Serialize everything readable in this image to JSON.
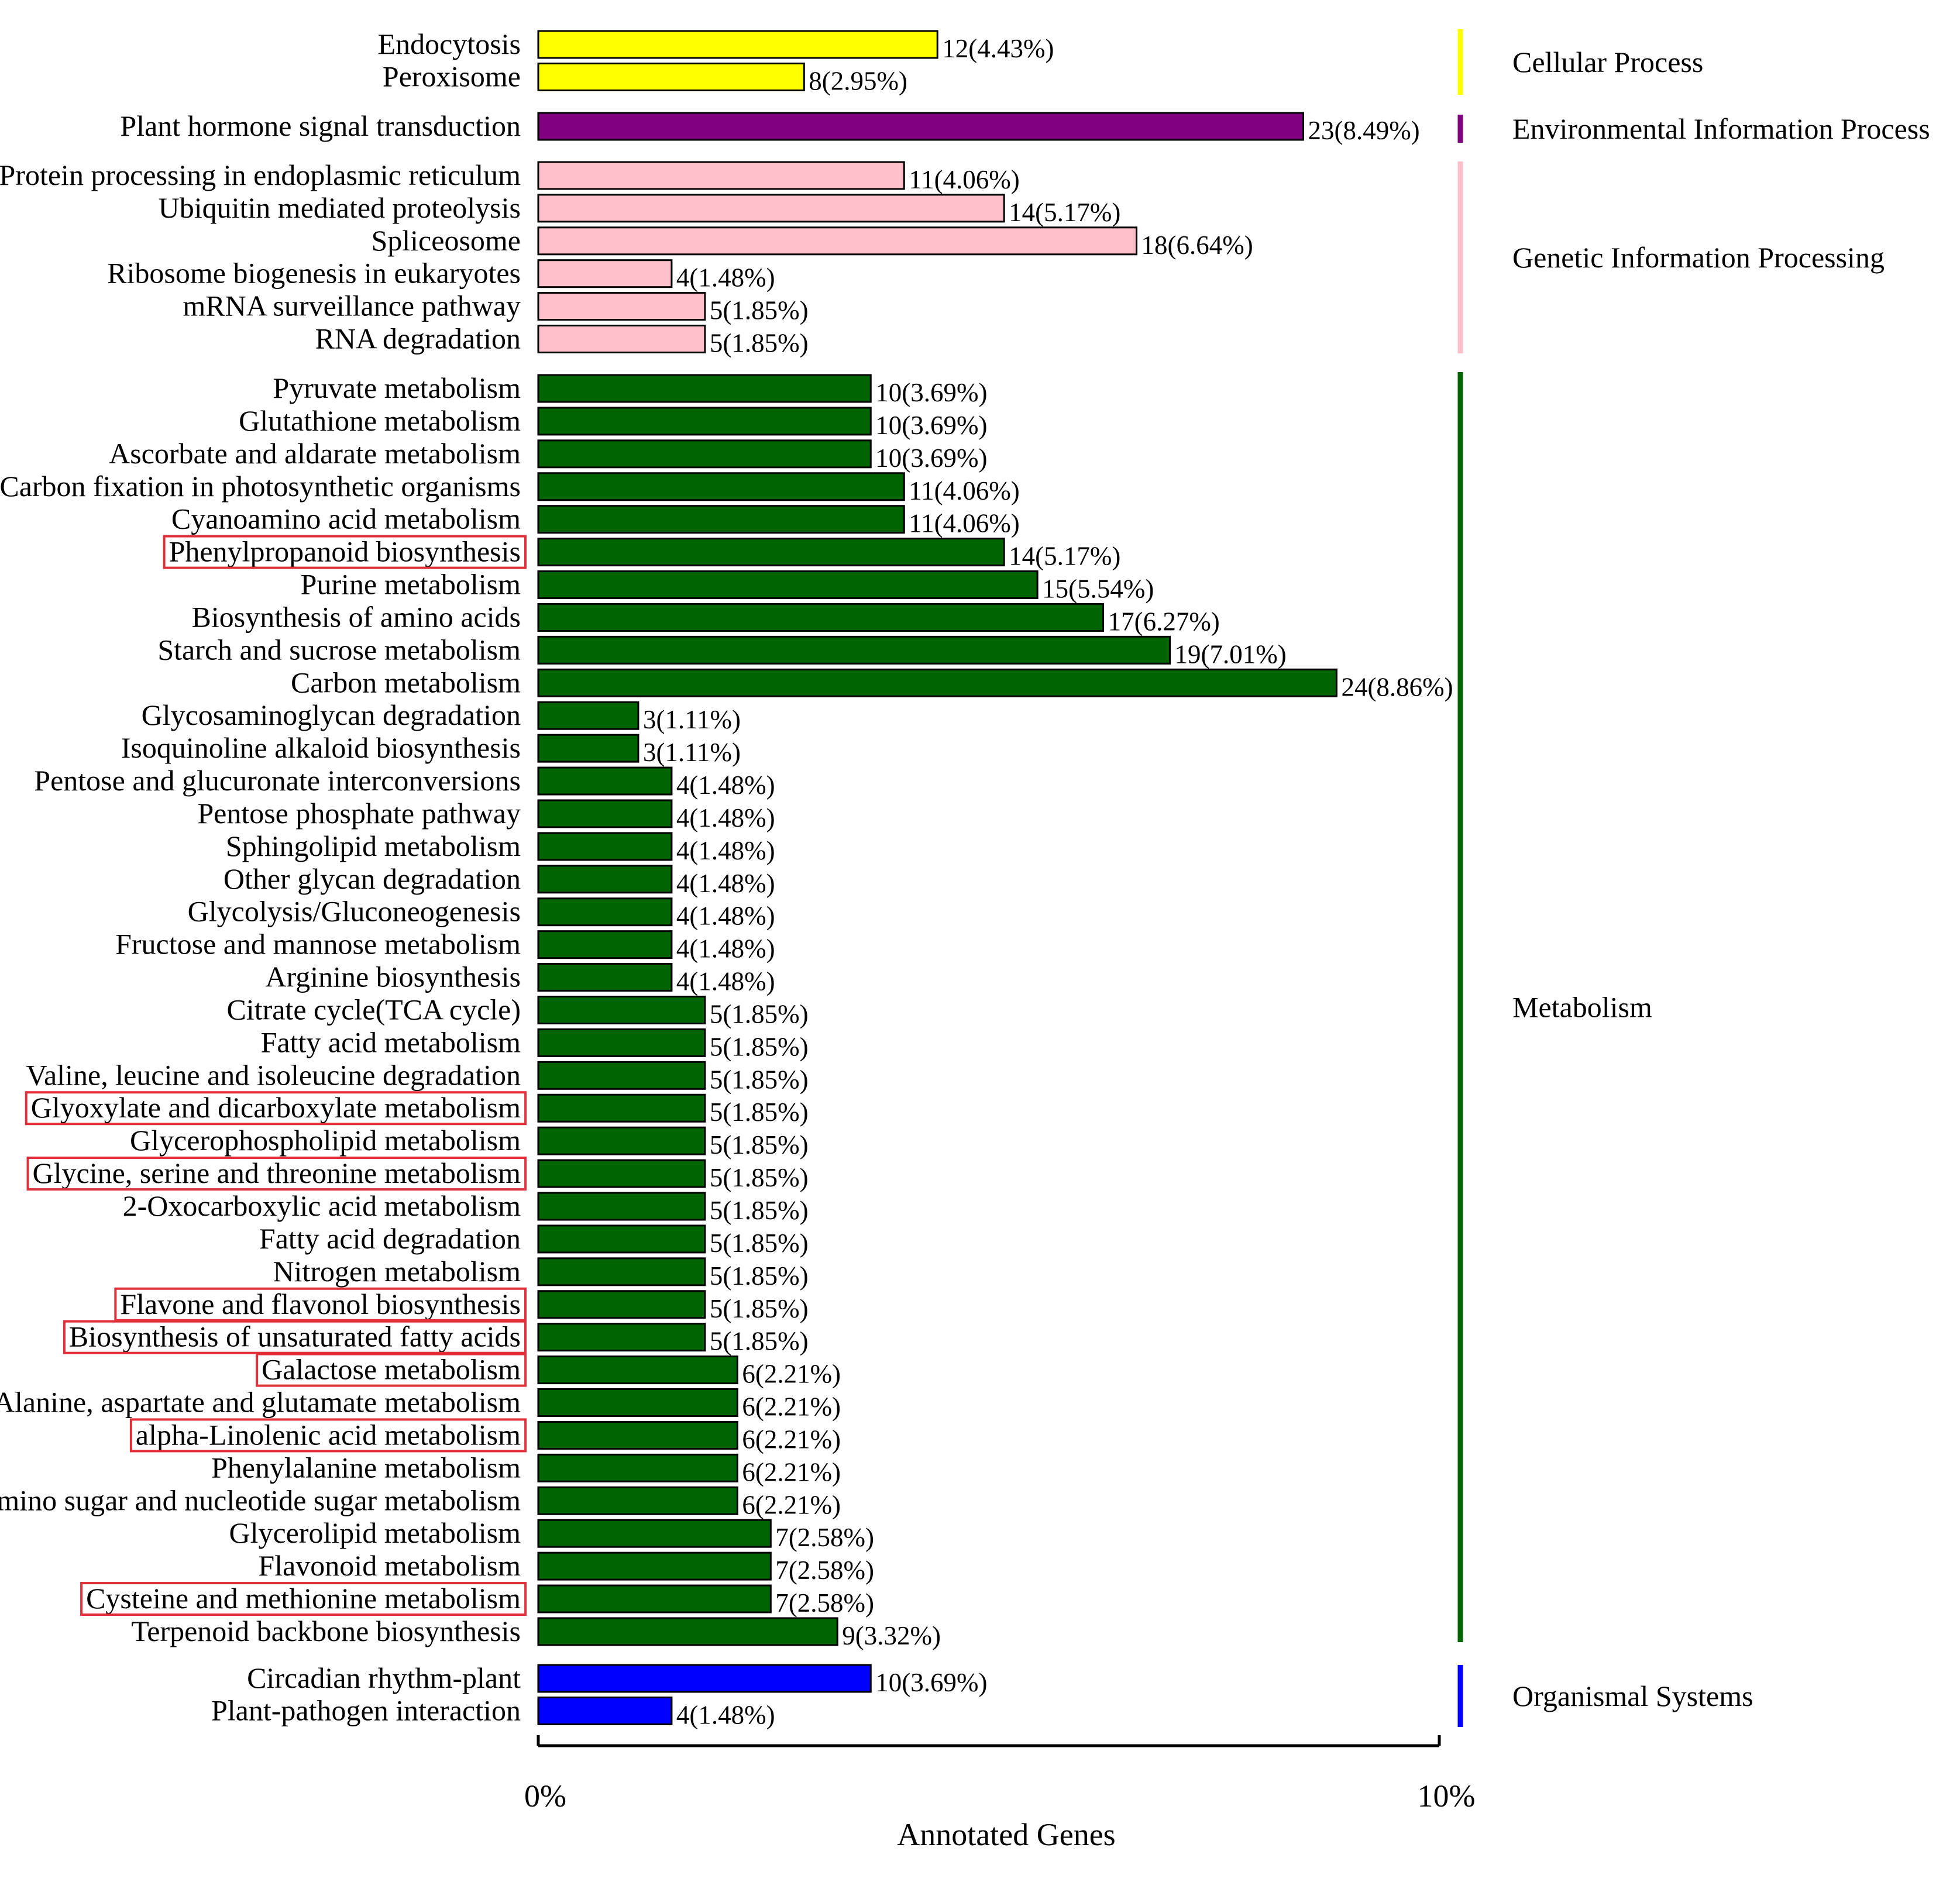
{
  "chart_data": {
    "type": "bar",
    "orientation": "horizontal",
    "xlabel": "Annotated Genes",
    "xlim": [
      0,
      10
    ],
    "x_ticks": [
      {
        "value": 0,
        "label": "0%"
      },
      {
        "value": 10,
        "label": "10%"
      }
    ],
    "groups": [
      {
        "name": "Cellular Process",
        "color": "#ffff00",
        "items": [
          {
            "label": "Endocytosis",
            "count": 12,
            "percent": 4.43,
            "value_label": "12(4.43%)",
            "highlighted": false
          },
          {
            "label": "Peroxisome",
            "count": 8,
            "percent": 2.95,
            "value_label": "8(2.95%)",
            "highlighted": false
          }
        ]
      },
      {
        "name": "Environmental Information Process",
        "color": "#800080",
        "items": [
          {
            "label": "Plant hormone signal transduction",
            "count": 23,
            "percent": 8.49,
            "value_label": "23(8.49%)",
            "highlighted": false
          }
        ]
      },
      {
        "name": "Genetic Information Processing",
        "color": "#ffc0cb",
        "items": [
          {
            "label": "Protein processing in endoplasmic reticulum",
            "count": 11,
            "percent": 4.06,
            "value_label": "11(4.06%)",
            "highlighted": false
          },
          {
            "label": "Ubiquitin mediated proteolysis",
            "count": 14,
            "percent": 5.17,
            "value_label": "14(5.17%)",
            "highlighted": false
          },
          {
            "label": "Spliceosome",
            "count": 18,
            "percent": 6.64,
            "value_label": "18(6.64%)",
            "highlighted": false
          },
          {
            "label": "Ribosome biogenesis in eukaryotes",
            "count": 4,
            "percent": 1.48,
            "value_label": "4(1.48%)",
            "highlighted": false
          },
          {
            "label": "mRNA surveillance pathway",
            "count": 5,
            "percent": 1.85,
            "value_label": "5(1.85%)",
            "highlighted": false
          },
          {
            "label": "RNA degradation",
            "count": 5,
            "percent": 1.85,
            "value_label": "5(1.85%)",
            "highlighted": false
          }
        ]
      },
      {
        "name": "Metabolism",
        "color": "#006400",
        "items": [
          {
            "label": "Pyruvate metabolism",
            "count": 10,
            "percent": 3.69,
            "value_label": "10(3.69%)",
            "highlighted": false
          },
          {
            "label": "Glutathione metabolism",
            "count": 10,
            "percent": 3.69,
            "value_label": "10(3.69%)",
            "highlighted": false
          },
          {
            "label": "Ascorbate and aldarate metabolism",
            "count": 10,
            "percent": 3.69,
            "value_label": "10(3.69%)",
            "highlighted": false
          },
          {
            "label": "Carbon fixation in photosynthetic organisms",
            "count": 11,
            "percent": 4.06,
            "value_label": "11(4.06%)",
            "highlighted": false
          },
          {
            "label": "Cyanoamino acid metabolism",
            "count": 11,
            "percent": 4.06,
            "value_label": "11(4.06%)",
            "highlighted": false
          },
          {
            "label": "Phenylpropanoid biosynthesis",
            "count": 14,
            "percent": 5.17,
            "value_label": "14(5.17%)",
            "highlighted": true
          },
          {
            "label": "Purine metabolism",
            "count": 15,
            "percent": 5.54,
            "value_label": "15(5.54%)",
            "highlighted": false
          },
          {
            "label": "Biosynthesis of amino acids",
            "count": 17,
            "percent": 6.27,
            "value_label": "17(6.27%)",
            "highlighted": false
          },
          {
            "label": "Starch and sucrose metabolism",
            "count": 19,
            "percent": 7.01,
            "value_label": "19(7.01%)",
            "highlighted": false
          },
          {
            "label": "Carbon metabolism",
            "count": 24,
            "percent": 8.86,
            "value_label": "24(8.86%)",
            "highlighted": false
          },
          {
            "label": "Glycosaminoglycan degradation",
            "count": 3,
            "percent": 1.11,
            "value_label": "3(1.11%)",
            "highlighted": false
          },
          {
            "label": "Isoquinoline alkaloid biosynthesis",
            "count": 3,
            "percent": 1.11,
            "value_label": "3(1.11%)",
            "highlighted": false
          },
          {
            "label": "Pentose and glucuronate interconversions",
            "count": 4,
            "percent": 1.48,
            "value_label": "4(1.48%)",
            "highlighted": false
          },
          {
            "label": "Pentose phosphate pathway",
            "count": 4,
            "percent": 1.48,
            "value_label": "4(1.48%)",
            "highlighted": false
          },
          {
            "label": "Sphingolipid metabolism",
            "count": 4,
            "percent": 1.48,
            "value_label": "4(1.48%)",
            "highlighted": false
          },
          {
            "label": "Other glycan degradation",
            "count": 4,
            "percent": 1.48,
            "value_label": "4(1.48%)",
            "highlighted": false
          },
          {
            "label": "Glycolysis/Gluconeogenesis",
            "count": 4,
            "percent": 1.48,
            "value_label": "4(1.48%)",
            "highlighted": false
          },
          {
            "label": "Fructose and mannose metabolism",
            "count": 4,
            "percent": 1.48,
            "value_label": "4(1.48%)",
            "highlighted": false
          },
          {
            "label": "Arginine biosynthesis",
            "count": 4,
            "percent": 1.48,
            "value_label": "4(1.48%)",
            "highlighted": false
          },
          {
            "label": "Citrate cycle(TCA cycle)",
            "count": 5,
            "percent": 1.85,
            "value_label": "5(1.85%)",
            "highlighted": false
          },
          {
            "label": "Fatty acid metabolism",
            "count": 5,
            "percent": 1.85,
            "value_label": "5(1.85%)",
            "highlighted": false
          },
          {
            "label": "Valine, leucine and isoleucine degradation",
            "count": 5,
            "percent": 1.85,
            "value_label": "5(1.85%)",
            "highlighted": false
          },
          {
            "label": "Glyoxylate and dicarboxylate metabolism",
            "count": 5,
            "percent": 1.85,
            "value_label": "5(1.85%)",
            "highlighted": true
          },
          {
            "label": "Glycerophospholipid metabolism",
            "count": 5,
            "percent": 1.85,
            "value_label": "5(1.85%)",
            "highlighted": false
          },
          {
            "label": "Glycine, serine and threonine metabolism",
            "count": 5,
            "percent": 1.85,
            "value_label": "5(1.85%)",
            "highlighted": true
          },
          {
            "label": "2-Oxocarboxylic acid metabolism",
            "count": 5,
            "percent": 1.85,
            "value_label": "5(1.85%)",
            "highlighted": false
          },
          {
            "label": "Fatty acid degradation",
            "count": 5,
            "percent": 1.85,
            "value_label": "5(1.85%)",
            "highlighted": false
          },
          {
            "label": "Nitrogen metabolism",
            "count": 5,
            "percent": 1.85,
            "value_label": "5(1.85%)",
            "highlighted": false
          },
          {
            "label": "Flavone and flavonol biosynthesis",
            "count": 5,
            "percent": 1.85,
            "value_label": "5(1.85%)",
            "highlighted": true
          },
          {
            "label": "Biosynthesis of unsaturated fatty acids",
            "count": 5,
            "percent": 1.85,
            "value_label": "5(1.85%)",
            "highlighted": true
          },
          {
            "label": "Galactose metabolism",
            "count": 6,
            "percent": 2.21,
            "value_label": "6(2.21%)",
            "highlighted": true
          },
          {
            "label": "Alanine, aspartate and glutamate metabolism",
            "count": 6,
            "percent": 2.21,
            "value_label": "6(2.21%)",
            "highlighted": false
          },
          {
            "label": "alpha-Linolenic acid metabolism",
            "count": 6,
            "percent": 2.21,
            "value_label": "6(2.21%)",
            "highlighted": true
          },
          {
            "label": "Phenylalanine metabolism",
            "count": 6,
            "percent": 2.21,
            "value_label": "6(2.21%)",
            "highlighted": false
          },
          {
            "label": "Amino sugar and nucleotide sugar metabolism",
            "count": 6,
            "percent": 2.21,
            "value_label": "6(2.21%)",
            "highlighted": false
          },
          {
            "label": "Glycerolipid metabolism",
            "count": 7,
            "percent": 2.58,
            "value_label": "7(2.58%)",
            "highlighted": false
          },
          {
            "label": "Flavonoid metabolism",
            "count": 7,
            "percent": 2.58,
            "value_label": "7(2.58%)",
            "highlighted": false
          },
          {
            "label": "Cysteine and methionine metabolism",
            "count": 7,
            "percent": 2.58,
            "value_label": "7(2.58%)",
            "highlighted": true
          },
          {
            "label": "Terpenoid backbone biosynthesis",
            "count": 9,
            "percent": 3.32,
            "value_label": "9(3.32%)",
            "highlighted": false
          }
        ]
      },
      {
        "name": "Organismal Systems",
        "color": "#0000ff",
        "items": [
          {
            "label": "Circadian rhythm-plant",
            "count": 10,
            "percent": 3.69,
            "value_label": "10(3.69%)",
            "highlighted": false
          },
          {
            "label": "Plant-pathogen interaction",
            "count": 4,
            "percent": 1.48,
            "value_label": "4(1.48%)",
            "highlighted": false
          }
        ]
      }
    ],
    "highlight_color": "#e0303a"
  }
}
